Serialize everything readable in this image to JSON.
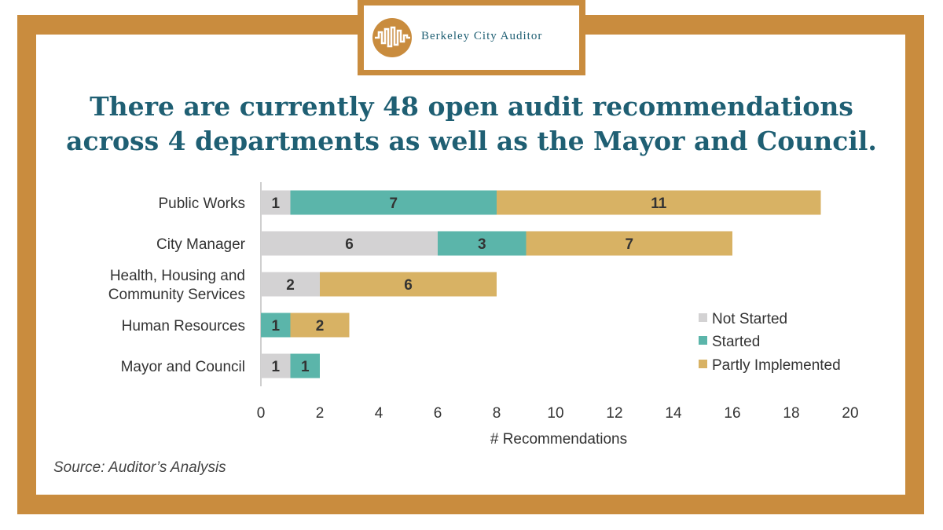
{
  "logo": {
    "name": "Berkeley City Auditor",
    "icon": "sound-wave-icon"
  },
  "headline": {
    "line1": "There are currently 48 open audit recommendations",
    "line2": "across 4 departments as well as the Mayor and Council."
  },
  "source": "Source: Auditor’s Analysis",
  "colors": {
    "frame": "#c98c3e",
    "title": "#1f5f73",
    "not_started": "#d3d2d3",
    "started": "#5bb5aa",
    "partly": "#d8b264"
  },
  "chart_data": {
    "type": "bar",
    "orientation": "horizontal",
    "stacked": true,
    "categories": [
      [
        "Public Works"
      ],
      [
        "City Manager"
      ],
      [
        "Health, Housing and",
        "Community Services"
      ],
      [
        "Human Resources"
      ],
      [
        "Mayor and Council"
      ]
    ],
    "series": [
      {
        "name": "Not Started",
        "color": "#d3d2d3",
        "values": [
          1,
          6,
          2,
          0,
          1
        ]
      },
      {
        "name": "Started",
        "color": "#5bb5aa",
        "values": [
          7,
          3,
          0,
          1,
          1
        ]
      },
      {
        "name": "Partly Implemented",
        "color": "#d8b264",
        "values": [
          11,
          7,
          6,
          2,
          0
        ]
      }
    ],
    "xlabel": "# Recommendations",
    "xlim": [
      0,
      20
    ],
    "xticks": [
      0,
      2,
      4,
      6,
      8,
      10,
      12,
      14,
      16,
      18,
      20
    ],
    "legend_position": "right"
  }
}
